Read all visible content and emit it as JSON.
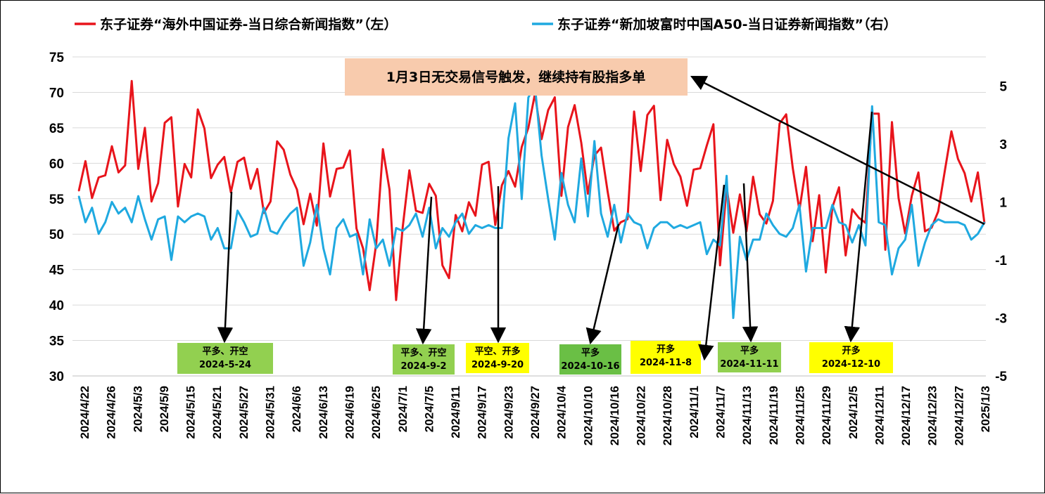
{
  "chart_data": {
    "type": "line",
    "left_axis": {
      "ylim": [
        30,
        75
      ],
      "ticks": [
        "30",
        "35",
        "40",
        "45",
        "50",
        "55",
        "60",
        "65",
        "70",
        "75"
      ]
    },
    "right_axis": {
      "ylim": [
        -5,
        6
      ],
      "ticks": [
        "-5",
        "-3",
        "-1",
        "1",
        "3",
        "5"
      ]
    },
    "grid": "horizontal",
    "legend": "top",
    "x_tick_labels": [
      "2024/4/22",
      "2024/4/26",
      "2024/5/3",
      "2024/5/9",
      "2024/5/15",
      "2024/5/21",
      "2024/5/27",
      "2024/5/31",
      "2024/6/6",
      "2024/6/13",
      "2024/6/19",
      "2024/6/25",
      "2024/7/1",
      "2024/7/5",
      "2024/9/11",
      "2024/9/17",
      "2024/9/23",
      "2024/9/27",
      "2024/10/4",
      "2024/10/10",
      "2024/10/16",
      "2024/10/22",
      "2024/10/28",
      "2024/11/1",
      "2024/11/7",
      "2024/11/13",
      "2024/11/19",
      "2024/11/25",
      "2024/11/29",
      "2024/12/5",
      "2024/12/11",
      "2024/12/17",
      "2024/12/23",
      "2024/12/27",
      "2025/1/3"
    ],
    "series": [
      {
        "name": "东子证券“海外中国证券-当日综合新闻指数”（左）",
        "color": "#e8141b",
        "axis": "left",
        "values": [
          56.1,
          60.3,
          55.1,
          58,
          58.3,
          62.4,
          58.7,
          59.7,
          71.6,
          59.2,
          65,
          54.6,
          57.2,
          65.7,
          66.5,
          53.9,
          59.9,
          58,
          67.6,
          64.9,
          57.9,
          59.8,
          60.9,
          55.9,
          60.2,
          60.8,
          56.4,
          59.2,
          53,
          54.6,
          63.1,
          61.9,
          58.4,
          56.3,
          51.4,
          55.7,
          51.2,
          62.8,
          55.3,
          59.2,
          59.4,
          61.8,
          50.8,
          48,
          42.1,
          48.7,
          62,
          56.3,
          40.7,
          51,
          59,
          53.3,
          53,
          57.1,
          55.4,
          45.6,
          43.8,
          52.7,
          50.4,
          54.5,
          52.6,
          59.8,
          60.2,
          51.3,
          56.9,
          58.9,
          56.7,
          62.3,
          65,
          69.8,
          63.4,
          67.5,
          69.3,
          55.4,
          65.1,
          68.2,
          62.9,
          55.7,
          61.1,
          62.2,
          56,
          50.5,
          51.7,
          52.1,
          67.3,
          58.9,
          66.8,
          68.1,
          54.8,
          63.3,
          59.9,
          58.1,
          54,
          59.1,
          59.3,
          62.5,
          65.5,
          45.6,
          56.6,
          50.2,
          55.6,
          50.4,
          58.1,
          52.8,
          51.5,
          54.7,
          65.6,
          66.9,
          59.3,
          53.4,
          59.5,
          49,
          55.5,
          44.6,
          53.8,
          56.6,
          47,
          53.5,
          52.3,
          51.6,
          67,
          67,
          47.8,
          65.8,
          55.1,
          50.1,
          55.4,
          58.7,
          50.4,
          50.9,
          53.2,
          58.9,
          64.5,
          60.6,
          58.6,
          54.6,
          58.7,
          51.5
        ]
      },
      {
        "name": "东子证券“新加坡富时中国A50-当日证券新闻指数”（右）",
        "color": "#1fa9e0",
        "axis": "right",
        "values": [
          1.2,
          0.3,
          0.8,
          -0.1,
          0.3,
          1,
          0.6,
          0.8,
          0.3,
          1.2,
          0.4,
          -0.3,
          0.4,
          0.5,
          -1,
          0.5,
          0.3,
          0.5,
          0.6,
          0.5,
          -0.3,
          0.1,
          -0.6,
          -0.6,
          0.7,
          0.3,
          -0.2,
          -0.1,
          0.8,
          0,
          -0.1,
          0.3,
          0.6,
          0.8,
          -1.2,
          -0.4,
          0.9,
          -0.6,
          -1.5,
          0.1,
          0.4,
          -0.2,
          -0.1,
          -1.5,
          0.4,
          -0.6,
          -0.3,
          -1.2,
          0.1,
          0,
          0.2,
          0.6,
          -0.2,
          0.8,
          -0.6,
          0.1,
          -0.2,
          0.3,
          0.6,
          -0.1,
          0.2,
          0.1,
          0.2,
          0.1,
          0.1,
          3.2,
          4.4,
          1.1,
          4.6,
          5,
          2.6,
          1.1,
          -0.3,
          2,
          0.9,
          0.3,
          2.5,
          0.5,
          3.1,
          0.6,
          -0.2,
          0.9,
          -0.4,
          0.6,
          0.3,
          0.2,
          -0.6,
          0.1,
          0.3,
          0.3,
          0.1,
          0.2,
          0.1,
          0.2,
          0.3,
          -0.8,
          -0.3,
          -0.5,
          1.9,
          -3,
          -0.2,
          -1,
          -0.3,
          -0.3,
          0.6,
          0.2,
          -0.1,
          -0.2,
          0.1,
          0.9,
          -1.4,
          0.1,
          0.1,
          0.1,
          0.9,
          0.3,
          0.2,
          -0.4,
          0.2,
          -0.5,
          4.3,
          0.3,
          0.2,
          -1.5,
          -0.6,
          -0.3,
          0.9,
          -1.2,
          -0.4,
          0.2,
          0.4,
          0.3,
          0.3,
          0.3,
          0.2,
          -0.3,
          -0.1,
          0.3
        ]
      }
    ],
    "top_callout": "1月3日无交易信号触发，继续持有股指多单",
    "annotations": [
      {
        "lines": [
          "平多、开空",
          "2024-5-24"
        ],
        "bg": "#92d050"
      },
      {
        "lines": [
          "平多、开空",
          "2024-9-2"
        ],
        "bg": "#92d050"
      },
      {
        "lines": [
          "平空、开多",
          "2024-9-20"
        ],
        "bg": "#ffff00"
      },
      {
        "lines": [
          "平多",
          "2024-10-16"
        ],
        "bg": "#6abf45"
      },
      {
        "lines": [
          "开多",
          "2024-11-8"
        ],
        "bg": "#ffff00"
      },
      {
        "lines": [
          "平多",
          "2024-11-11"
        ],
        "bg": "#92d050"
      },
      {
        "lines": [
          "开多",
          "2024-12-10"
        ],
        "bg": "#ffff00"
      }
    ]
  }
}
